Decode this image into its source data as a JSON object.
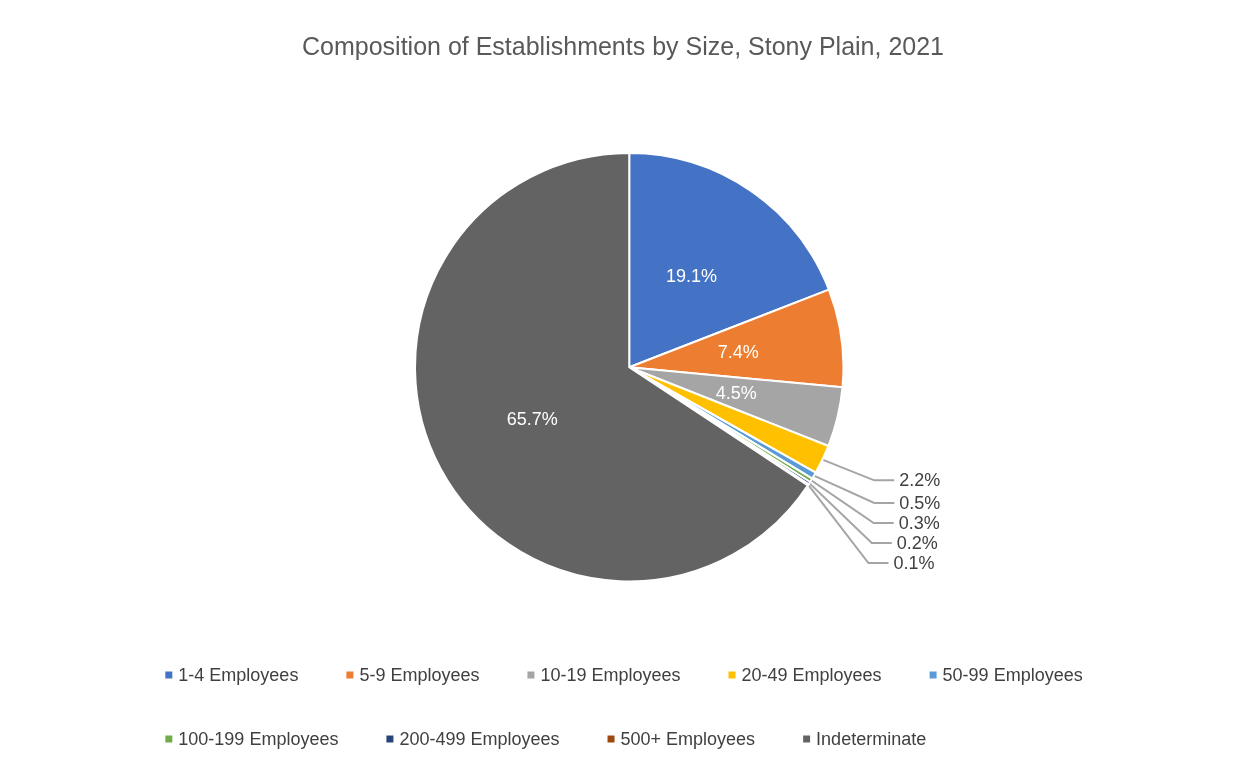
{
  "chart_data": {
    "type": "pie",
    "title": "Composition of Establishments by Size, Stony Plain, 2021",
    "categories": [
      "1-4 Employees",
      "5-9 Employees",
      "10-19 Employees",
      "20-49 Employees",
      "50-99 Employees",
      "100-199 Employees",
      "200-499 Employees",
      "500+ Employees",
      "Indeterminate"
    ],
    "values": [
      19.1,
      7.4,
      4.5,
      2.2,
      0.5,
      0.3,
      0.2,
      0.1,
      65.7
    ],
    "value_labels": [
      "19.1%",
      "7.4%",
      "4.5%",
      "2.2%",
      "0.5%",
      "0.3%",
      "0.2%",
      "0.1%",
      "65.7%"
    ],
    "colors": [
      "#4472c4",
      "#ed7d31",
      "#a5a5a5",
      "#ffc000",
      "#5b9bd5",
      "#70ad47",
      "#264478",
      "#9e480e",
      "#636363"
    ],
    "legend": "bottom"
  }
}
